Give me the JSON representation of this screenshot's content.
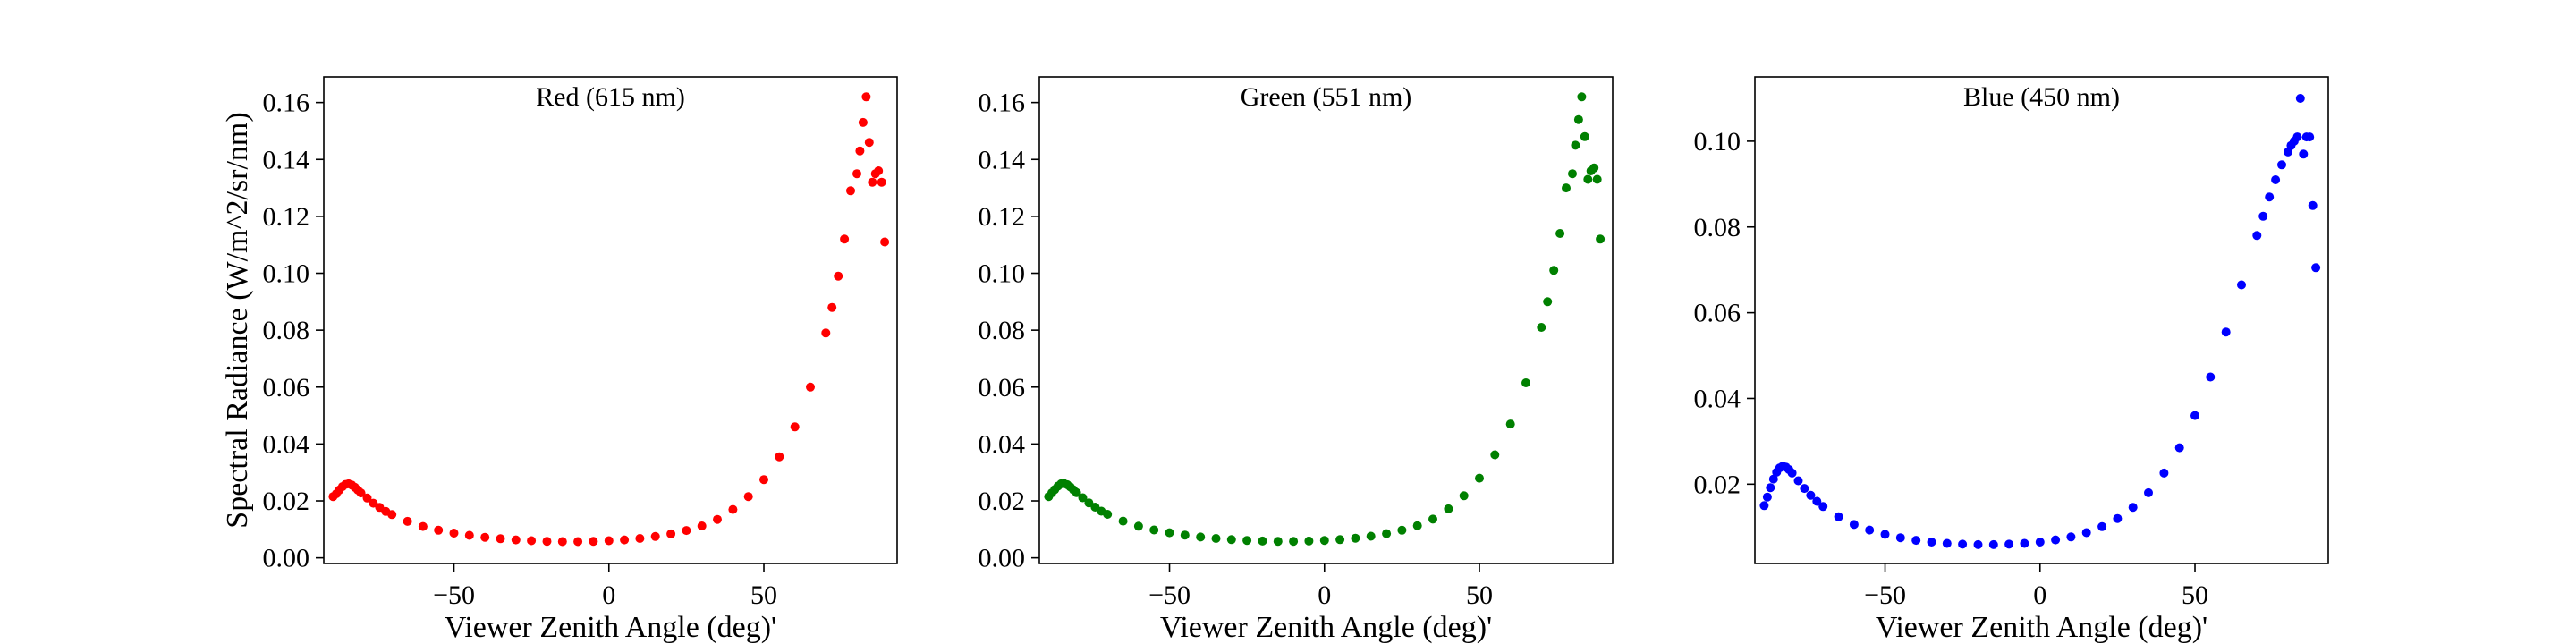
{
  "chart_data": [
    {
      "type": "scatter",
      "title": "Red (615 nm)",
      "xlabel": "Viewer Zenith Angle (deg)'",
      "ylabel": "Spectral Radiance (W/m^2/sr/nm)",
      "color": "#ff0000",
      "xlim": [
        -92,
        93
      ],
      "ylim": [
        -0.002,
        0.169
      ],
      "xticks": [
        -50,
        0,
        50
      ],
      "xtick_labels": [
        "−50",
        "0",
        "50"
      ],
      "yticks": [
        0.0,
        0.02,
        0.04,
        0.06,
        0.08,
        0.1,
        0.12,
        0.14,
        0.16
      ],
      "ytick_labels": [
        "0.00",
        "0.02",
        "0.04",
        "0.06",
        "0.08",
        "0.10",
        "0.12",
        "0.14",
        "0.16"
      ],
      "grid": false,
      "legend": "none",
      "series": [
        {
          "x": [
            -89,
            -88,
            -87,
            -86,
            -85,
            -84,
            -83,
            -82,
            -81,
            -80,
            -78,
            -76,
            -74,
            -72,
            -70,
            -65,
            -60,
            -55,
            -50,
            -45,
            -40,
            -35,
            -30,
            -25,
            -20,
            -15,
            -10,
            -5,
            0,
            5,
            10,
            15,
            20,
            25,
            30,
            35,
            40,
            45,
            50,
            55,
            60,
            65,
            70,
            72,
            74,
            76,
            78,
            80,
            81,
            82,
            83,
            84,
            85,
            86,
            87,
            88,
            89
          ],
          "y": [
            0.0215,
            0.0225,
            0.0238,
            0.025,
            0.0258,
            0.026,
            0.0256,
            0.0248,
            0.0238,
            0.0228,
            0.021,
            0.0192,
            0.0177,
            0.0163,
            0.0152,
            0.0128,
            0.011,
            0.0097,
            0.0087,
            0.0079,
            0.0072,
            0.0067,
            0.0063,
            0.006,
            0.0058,
            0.0057,
            0.0057,
            0.0058,
            0.006,
            0.0063,
            0.0068,
            0.0075,
            0.0084,
            0.0096,
            0.0112,
            0.0135,
            0.017,
            0.0215,
            0.0275,
            0.0355,
            0.046,
            0.06,
            0.079,
            0.088,
            0.099,
            0.112,
            0.129,
            0.135,
            0.143,
            0.153,
            0.162,
            0.146,
            0.132,
            0.135,
            0.136,
            0.132,
            0.111
          ]
        }
      ]
    },
    {
      "type": "scatter",
      "title": "Green (551 nm)",
      "xlabel": "Viewer Zenith Angle (deg)'",
      "ylabel": "",
      "color": "#008000",
      "xlim": [
        -92,
        93
      ],
      "ylim": [
        -0.002,
        0.169
      ],
      "xticks": [
        -50,
        0,
        50
      ],
      "xtick_labels": [
        "−50",
        "0",
        "50"
      ],
      "yticks": [
        0.0,
        0.02,
        0.04,
        0.06,
        0.08,
        0.1,
        0.12,
        0.14,
        0.16
      ],
      "ytick_labels": [
        "0.00",
        "0.02",
        "0.04",
        "0.06",
        "0.08",
        "0.10",
        "0.12",
        "0.14",
        "0.16"
      ],
      "grid": false,
      "legend": "none",
      "series": [
        {
          "x": [
            -89,
            -88,
            -87,
            -86,
            -85,
            -84,
            -83,
            -82,
            -81,
            -80,
            -78,
            -76,
            -74,
            -72,
            -70,
            -65,
            -60,
            -55,
            -50,
            -45,
            -40,
            -35,
            -30,
            -25,
            -20,
            -15,
            -10,
            -5,
            0,
            5,
            10,
            15,
            20,
            25,
            30,
            35,
            40,
            45,
            50,
            55,
            60,
            65,
            70,
            72,
            74,
            76,
            78,
            80,
            81,
            82,
            83,
            84,
            85,
            86,
            87,
            88,
            89
          ],
          "y": [
            0.0215,
            0.0228,
            0.024,
            0.0252,
            0.026,
            0.0261,
            0.0257,
            0.0249,
            0.0239,
            0.0229,
            0.0211,
            0.0193,
            0.0178,
            0.0164,
            0.0153,
            0.0129,
            0.0111,
            0.0098,
            0.0088,
            0.008,
            0.0073,
            0.0068,
            0.0064,
            0.0061,
            0.0059,
            0.0058,
            0.0058,
            0.0059,
            0.0061,
            0.0064,
            0.0069,
            0.0076,
            0.0085,
            0.0097,
            0.0113,
            0.0136,
            0.0172,
            0.0218,
            0.028,
            0.0362,
            0.047,
            0.0615,
            0.081,
            0.09,
            0.101,
            0.114,
            0.13,
            0.135,
            0.145,
            0.154,
            0.162,
            0.148,
            0.133,
            0.136,
            0.137,
            0.133,
            0.112
          ]
        }
      ]
    },
    {
      "type": "scatter",
      "title": "Blue (450 nm)",
      "xlabel": "Viewer Zenith Angle (deg)'",
      "ylabel": "",
      "color": "#0000ff",
      "xlim": [
        -92,
        93
      ],
      "ylim": [
        0.0015,
        0.115
      ],
      "xticks": [
        -50,
        0,
        50
      ],
      "xtick_labels": [
        "−50",
        "0",
        "50"
      ],
      "yticks": [
        0.02,
        0.04,
        0.06,
        0.08,
        0.1
      ],
      "ytick_labels": [
        "0.02",
        "0.04",
        "0.06",
        "0.08",
        "0.10"
      ],
      "grid": false,
      "legend": "none",
      "series": [
        {
          "x": [
            -89,
            -88,
            -87,
            -86,
            -85,
            -84,
            -83,
            -82,
            -81,
            -80,
            -78,
            -76,
            -74,
            -72,
            -70,
            -65,
            -60,
            -55,
            -50,
            -45,
            -40,
            -35,
            -30,
            -25,
            -20,
            -15,
            -10,
            -5,
            0,
            5,
            10,
            15,
            20,
            25,
            30,
            35,
            40,
            45,
            50,
            55,
            60,
            65,
            70,
            72,
            74,
            76,
            78,
            80,
            81,
            82,
            83,
            84,
            85,
            86,
            87,
            88,
            89
          ],
          "y": [
            0.015,
            0.017,
            0.0192,
            0.0212,
            0.0228,
            0.0238,
            0.0242,
            0.024,
            0.0234,
            0.0226,
            0.0208,
            0.019,
            0.0174,
            0.016,
            0.0148,
            0.0124,
            0.0106,
            0.0093,
            0.0083,
            0.0075,
            0.0069,
            0.0065,
            0.0062,
            0.006,
            0.0059,
            0.0059,
            0.006,
            0.0062,
            0.0065,
            0.007,
            0.0077,
            0.0087,
            0.0101,
            0.012,
            0.0146,
            0.018,
            0.0226,
            0.0285,
            0.036,
            0.045,
            0.0555,
            0.0665,
            0.078,
            0.0825,
            0.087,
            0.091,
            0.0945,
            0.0975,
            0.099,
            0.1,
            0.101,
            0.11,
            0.097,
            0.101,
            0.101,
            0.085,
            0.0705
          ]
        }
      ]
    }
  ]
}
